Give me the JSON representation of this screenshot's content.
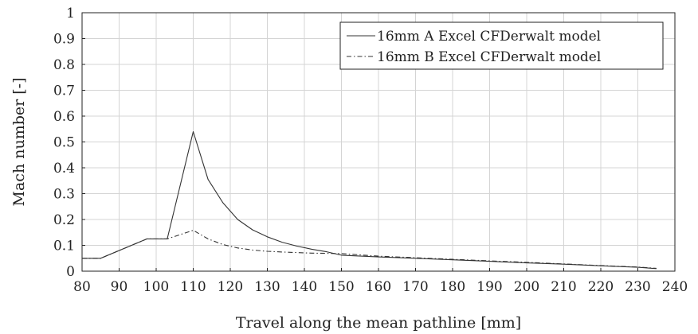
{
  "chart_data": {
    "type": "line",
    "xlabel": "Travel along the mean pathline [mm]",
    "ylabel": "Mach number [-]",
    "xlim": [
      80,
      240
    ],
    "ylim": [
      0,
      1
    ],
    "x_ticks": [
      80,
      90,
      100,
      110,
      120,
      130,
      140,
      150,
      160,
      170,
      180,
      190,
      200,
      210,
      220,
      230,
      240
    ],
    "y_ticks": [
      0,
      0.1,
      0.2,
      0.3,
      0.4,
      0.5,
      0.6,
      0.7,
      0.8,
      0.9,
      1
    ],
    "x_tick_labels": [
      "80",
      "90",
      "100",
      "110",
      "120",
      "130",
      "140",
      "150",
      "160",
      "170",
      "180",
      "190",
      "200",
      "210",
      "220",
      "230",
      "240"
    ],
    "y_tick_labels": [
      "0",
      "0.1",
      "0.2",
      "0.3",
      "0.4",
      "0.5",
      "0.6",
      "0.7",
      "0.8",
      "0.9",
      "1"
    ],
    "grid": true,
    "legend_position": "top-right",
    "series": [
      {
        "name": "16mm A Excel CFDerwalt model",
        "style": "solid",
        "color": "#333333",
        "points": [
          [
            80,
            0.05
          ],
          [
            85,
            0.05
          ],
          [
            97.5,
            0.125
          ],
          [
            103,
            0.125
          ],
          [
            110,
            0.54
          ],
          [
            114,
            0.355
          ],
          [
            118,
            0.265
          ],
          [
            122,
            0.2
          ],
          [
            126,
            0.16
          ],
          [
            130,
            0.133
          ],
          [
            134,
            0.112
          ],
          [
            138,
            0.097
          ],
          [
            142,
            0.085
          ],
          [
            146,
            0.075
          ],
          [
            150,
            0.062
          ],
          [
            160,
            0.055
          ],
          [
            170,
            0.05
          ],
          [
            180,
            0.044
          ],
          [
            190,
            0.038
          ],
          [
            200,
            0.032
          ],
          [
            210,
            0.027
          ],
          [
            220,
            0.021
          ],
          [
            230,
            0.015
          ],
          [
            235,
            0.01
          ]
        ]
      },
      {
        "name": "16mm B Excel CFDerwalt model",
        "style": "dashdot",
        "color": "#333333",
        "points": [
          [
            80,
            0.05
          ],
          [
            85,
            0.05
          ],
          [
            97.5,
            0.125
          ],
          [
            103,
            0.125
          ],
          [
            110,
            0.158
          ],
          [
            114,
            0.125
          ],
          [
            118,
            0.103
          ],
          [
            122,
            0.09
          ],
          [
            126,
            0.082
          ],
          [
            130,
            0.077
          ],
          [
            134,
            0.074
          ],
          [
            138,
            0.072
          ],
          [
            142,
            0.07
          ],
          [
            146,
            0.069
          ],
          [
            150,
            0.068
          ],
          [
            160,
            0.058
          ],
          [
            170,
            0.052
          ],
          [
            180,
            0.046
          ],
          [
            190,
            0.04
          ],
          [
            200,
            0.034
          ],
          [
            210,
            0.028
          ],
          [
            220,
            0.022
          ],
          [
            230,
            0.016
          ],
          [
            235,
            0.011
          ]
        ]
      }
    ]
  }
}
